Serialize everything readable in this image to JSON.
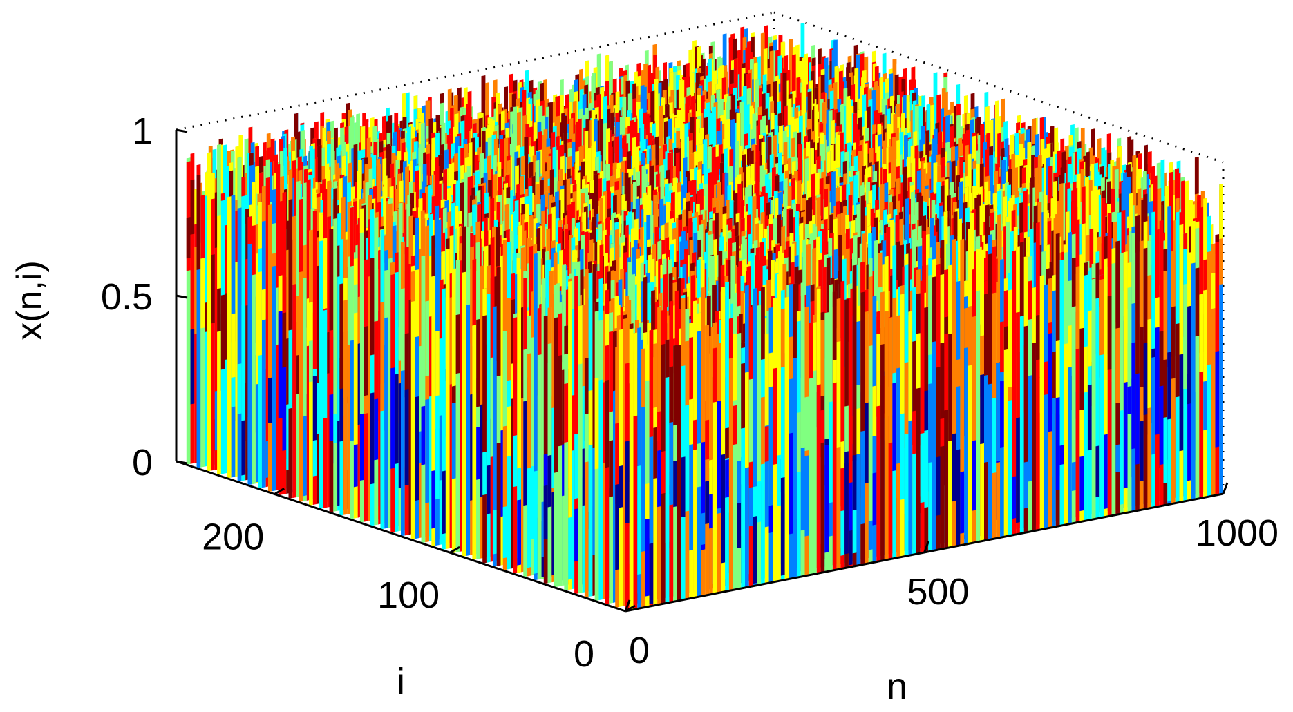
{
  "chart_data": {
    "type": "surface-3d",
    "title": "",
    "xlabel": "n",
    "ylabel": "i",
    "zlabel": "x(n,i)",
    "x_range": [
      0,
      1000
    ],
    "y_range": [
      0,
      256
    ],
    "z_range": [
      0,
      1
    ],
    "x_ticks": [
      0,
      500,
      1000
    ],
    "x_tick_labels": [
      "0",
      "500",
      "1000"
    ],
    "y_ticks": [
      0,
      100,
      200
    ],
    "y_tick_labels": [
      "0",
      "100",
      "200"
    ],
    "z_ticks": [
      0,
      0.5,
      1
    ],
    "z_tick_labels": [
      "0",
      "0.5",
      "1"
    ],
    "grid": false,
    "box": true,
    "colormap": "jet",
    "colors": [
      "#00008f",
      "#0000ff",
      "#0080ff",
      "#00ffff",
      "#80ff80",
      "#ffff00",
      "#ff8000",
      "#ff0000",
      "#800000"
    ]
  }
}
